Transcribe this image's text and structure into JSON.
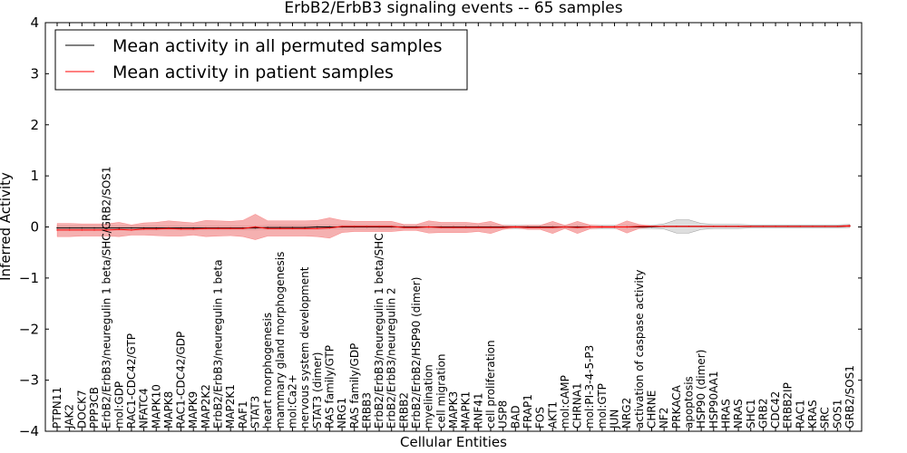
{
  "chart_data": {
    "type": "line",
    "title": "ErbB2/ErbB3 signaling events -- 65 samples",
    "xlabel": "Cellular Entities",
    "ylabel": "Inferred Activity",
    "ylim": [
      -4,
      4
    ],
    "yticks": [
      "−4",
      "−3",
      "−2",
      "−1",
      "0",
      "1",
      "2",
      "3",
      "4"
    ],
    "grid": false,
    "legend_position": "top-left",
    "categories": [
      "PTPN11",
      "JAK2",
      "DOCK7",
      "PPP3CB",
      "ErbB2/ErbB3/neuregulin 1 beta/SHC/GRB2/SOS1",
      "mol:GDP",
      "RAC1-CDC42/GTP",
      "NFATC4",
      "MAPK10",
      "MAPK8",
      "RAC1-CDC42/GDP",
      "MAPK9",
      "MAP2K2",
      "ErbB2/ErbB3/neuregulin 1 beta",
      "MAP2K1",
      "RAF1",
      "STAT3",
      "heart morphogenesis",
      "mammary gland morphogenesis",
      "mol:Ca2+",
      "nervous system development",
      "STAT3 (dimer)",
      "RAS family/GTP",
      "NRG1",
      "RAS family/GDP",
      "ERBB3",
      "ErbB2/ErbB3/neuregulin 1 beta/SHC",
      "ErbB2/ErbB3/neuregulin 2",
      "ERBB2",
      "ErbB2/ErbB2/HSP90 (dimer)",
      "myelination",
      "cell migration",
      "MAPK3",
      "MAPK1",
      "RNF41",
      "cell proliferation",
      "USP8",
      "BAD",
      "FRAP1",
      "FOS",
      "AKT1",
      "mol:cAMP",
      "CHRNA1",
      "mol:PI-3-4-5-P3",
      "mol:GTP",
      "JUN",
      "NRG2",
      "activation of caspase activity",
      "CHRNE",
      "NF2",
      "PRKACA",
      "apoptosis",
      "HSP90 (dimer)",
      "HSP90AA1",
      "HRAS",
      "NRAS",
      "SHC1",
      "GRB2",
      "CDC42",
      "ERBB2IP",
      "RAC1",
      "KRAS",
      "SRC",
      "SOS1",
      "GRB2/SOS1"
    ],
    "series": [
      {
        "name": "Mean activity in all permuted samples",
        "color": "#000000",
        "values": [
          -0.02,
          -0.02,
          -0.02,
          -0.02,
          -0.02,
          -0.02,
          -0.02,
          -0.02,
          -0.02,
          -0.02,
          -0.02,
          -0.02,
          -0.02,
          -0.02,
          -0.02,
          -0.02,
          -0.02,
          -0.01,
          -0.01,
          -0.01,
          -0.01,
          0,
          0,
          0,
          0,
          0,
          0,
          0,
          0,
          0,
          0,
          0,
          0,
          0,
          0,
          0,
          0,
          0,
          0,
          0,
          0,
          0,
          0,
          0,
          0,
          0,
          0,
          0,
          0,
          0.01,
          0.01,
          0.01,
          0.01,
          0.01,
          0.01,
          0.01,
          0.01,
          0.01,
          0.01,
          0.01,
          0.01,
          0.01,
          0.01,
          0.01,
          0.02
        ],
        "band": [
          0.04,
          0.04,
          0.04,
          0.04,
          0.04,
          0.04,
          0.04,
          0.04,
          0.04,
          0.04,
          0.04,
          0.04,
          0.04,
          0.04,
          0.04,
          0.04,
          0.04,
          0.04,
          0.04,
          0.04,
          0.04,
          0.04,
          0.04,
          0.04,
          0.04,
          0.04,
          0.04,
          0.04,
          0.03,
          0.03,
          0.03,
          0.03,
          0.03,
          0.03,
          0.03,
          0.03,
          0.03,
          0.03,
          0.03,
          0.03,
          0.03,
          0.03,
          0.03,
          0.03,
          0.03,
          0.03,
          0.03,
          0.03,
          0.03,
          0.05,
          0.13,
          0.13,
          0.06,
          0.04,
          0.04,
          0.04,
          0.03,
          0.03,
          0.03,
          0.03,
          0.03,
          0.03,
          0.03,
          0.03,
          0.03
        ],
        "band_color": "#c8c8c8"
      },
      {
        "name": "Mean activity in patient samples",
        "color": "#ff0000",
        "values": [
          -0.06,
          -0.06,
          -0.06,
          -0.06,
          -0.06,
          -0.05,
          -0.06,
          -0.04,
          -0.04,
          -0.03,
          -0.04,
          -0.04,
          -0.03,
          -0.03,
          -0.03,
          -0.03,
          0,
          -0.03,
          -0.03,
          -0.03,
          -0.03,
          -0.03,
          -0.02,
          0.01,
          0.01,
          0.01,
          0.01,
          0.01,
          -0.01,
          -0.01,
          0,
          -0.01,
          -0.01,
          -0.01,
          -0.01,
          -0.01,
          -0.01,
          0,
          -0.01,
          -0.01,
          -0.01,
          0,
          -0.01,
          0,
          0,
          0,
          0,
          0.01,
          0.01,
          0.01,
          0.01,
          0.01,
          0.01,
          0.01,
          0.01,
          0.01,
          0.01,
          0.01,
          0.01,
          0.01,
          0.01,
          0.01,
          0.01,
          0.01,
          0.02
        ],
        "band": [
          0.13,
          0.13,
          0.12,
          0.12,
          0.12,
          0.14,
          0.1,
          0.12,
          0.13,
          0.15,
          0.14,
          0.12,
          0.16,
          0.15,
          0.14,
          0.16,
          0.25,
          0.15,
          0.15,
          0.15,
          0.15,
          0.16,
          0.2,
          0.12,
          0.1,
          0.1,
          0.1,
          0.1,
          0.06,
          0.06,
          0.12,
          0.1,
          0.1,
          0.1,
          0.08,
          0.12,
          0.04,
          0.02,
          0.04,
          0.04,
          0.12,
          0.03,
          0.12,
          0.04,
          0.02,
          0.02,
          0.12,
          0.04,
          0.01,
          0.01,
          0.01,
          0.01,
          0.01,
          0.01,
          0.01,
          0.01,
          0.01,
          0.01,
          0.01,
          0.01,
          0.01,
          0.01,
          0.01,
          0.01,
          0.02
        ],
        "band_color": "#f29696"
      }
    ]
  }
}
